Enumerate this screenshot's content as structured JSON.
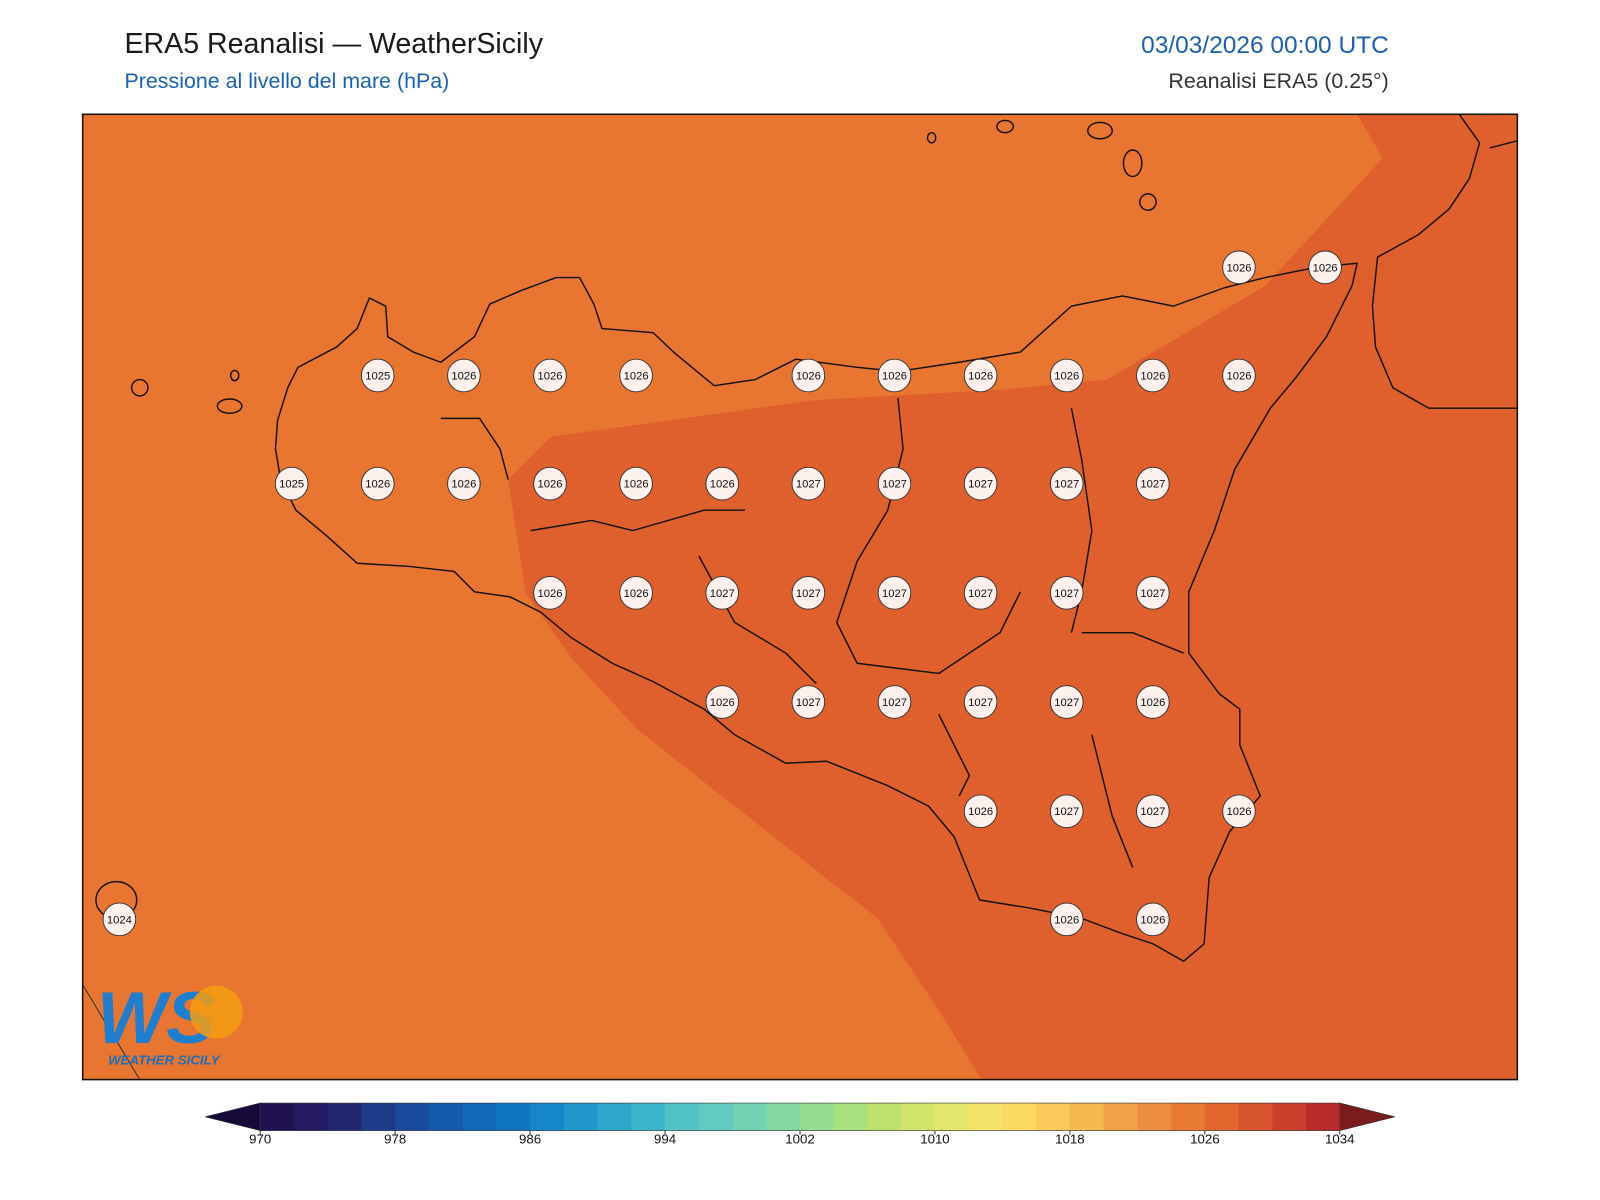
{
  "header": {
    "title": "ERA5 Reanalisi — WeatherSicily",
    "subtitle": "Pressione al livello del mare (hPa)",
    "datetime": "03/03/2026 00:00 UTC",
    "source": "Reanalisi ERA5 (0.25°)"
  },
  "stations": [
    1026,
    1026,
    1025,
    1026,
    1026,
    1026,
    1026,
    1026,
    1026,
    1026,
    1026,
    1026,
    1025,
    1026,
    1026,
    1026,
    1026,
    1026,
    1027,
    1027,
    1027,
    1027,
    1027,
    1026,
    1026,
    1027,
    1027,
    1027,
    1027,
    1027,
    1027,
    1026,
    1027,
    1027,
    1027,
    1027,
    1026,
    1026,
    1027,
    1027,
    1026,
    1024,
    1026,
    1026
  ],
  "colorbar": {
    "ticks": [
      970,
      978,
      986,
      994,
      1002,
      1010,
      1018,
      1026,
      1034
    ],
    "colors": [
      "#201250",
      "#231a62",
      "#21286f",
      "#1e3a88",
      "#1a4a9e",
      "#1559ad",
      "#1168b8",
      "#0f77c2",
      "#1586c8",
      "#2096cb",
      "#2ea6cc",
      "#3db6cb",
      "#4fc3c6",
      "#61cbbf",
      "#72d2b2",
      "#82d7a3",
      "#94dc8f",
      "#a7e07c",
      "#bde36c",
      "#d2e56a",
      "#e4e66d",
      "#f5e36a",
      "#fad862",
      "#f9c95a",
      "#f6b650",
      "#f1a247",
      "#ec8e3e",
      "#e87a33",
      "#e1672f",
      "#d7532d",
      "#ca402d",
      "#b92c2c"
    ],
    "under_color": "#15093a",
    "over_color": "#7a1c1c"
  },
  "logo": {
    "mark": "WS",
    "text": "WEATHER SICILY"
  }
}
